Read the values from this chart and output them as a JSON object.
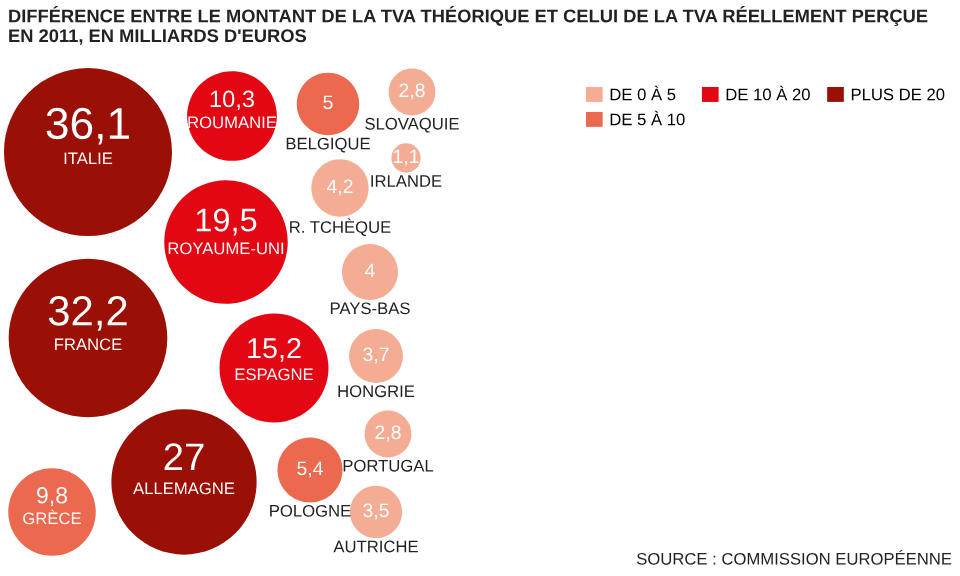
{
  "chart_data": {
    "type": "other",
    "title": "DIFFÉRENCE ENTRE LE MONTANT DE LA TVA THÉORIQUE ET CELUI DE LA TVA RÉELLEMENT PERÇUE\nEN 2011, EN MILLIARDS D'EUROS",
    "legend": "top right",
    "categories": [
      "IRLANDE",
      "ROYAUME-UNI",
      "ESPAGNE",
      "PORTUGAL",
      "BELGIQUE",
      "PAYS-BAS",
      "FRANCE",
      "ITALIE",
      "ALLEMAGNE",
      "R. TCHÈQUE",
      "AUTRICHE",
      "HONGRIE",
      "GRÈCE",
      "POLOGNE",
      "SLOVAQUIE",
      "ROUMANIE"
    ],
    "series": [
      {
        "name": "DE 0 À 5",
        "color": "#f4ad94",
        "values": [
          1.1,
          null,
          null,
          2.8,
          null,
          4,
          null,
          null,
          null,
          4.2,
          3.5,
          3.7,
          null,
          null,
          2.8,
          null
        ],
        "value_labels": [
          "1,1",
          null,
          null,
          "2,8",
          null,
          "4",
          null,
          null,
          null,
          "4,2",
          "3,5",
          "3,7",
          null,
          null,
          "2,8",
          null
        ]
      },
      {
        "name": "DE 5 À 10",
        "color": "#eb6a4f",
        "values": [
          null,
          null,
          null,
          null,
          5,
          null,
          null,
          null,
          null,
          null,
          null,
          null,
          9.8,
          5.4,
          null,
          null
        ],
        "value_labels": [
          null,
          null,
          null,
          null,
          "5",
          null,
          null,
          null,
          null,
          null,
          null,
          null,
          "9,8",
          "5,4",
          null,
          null
        ]
      },
      {
        "name": "DE 10 À 20",
        "color": "#e30613",
        "values": [
          null,
          19.5,
          15.2,
          null,
          null,
          null,
          null,
          null,
          null,
          null,
          null,
          null,
          null,
          null,
          null,
          10.3
        ],
        "value_labels": [
          null,
          "19,5",
          "15,2",
          null,
          null,
          null,
          null,
          null,
          null,
          null,
          null,
          null,
          null,
          null,
          null,
          "10,3"
        ]
      },
      {
        "name": "PLUS DE 20",
        "color": "#9b1006",
        "values": [
          null,
          null,
          null,
          null,
          null,
          null,
          32.2,
          36.1,
          27,
          null,
          null,
          null,
          null,
          null,
          null,
          null
        ],
        "value_labels": [
          null,
          null,
          null,
          null,
          null,
          null,
          "32,2",
          "36,1",
          "27",
          null,
          null,
          null,
          null,
          null,
          null,
          null
        ]
      }
    ],
    "annotations": [
      "SOURCE : COMMISSION EUROPÉENNE"
    ]
  }
}
